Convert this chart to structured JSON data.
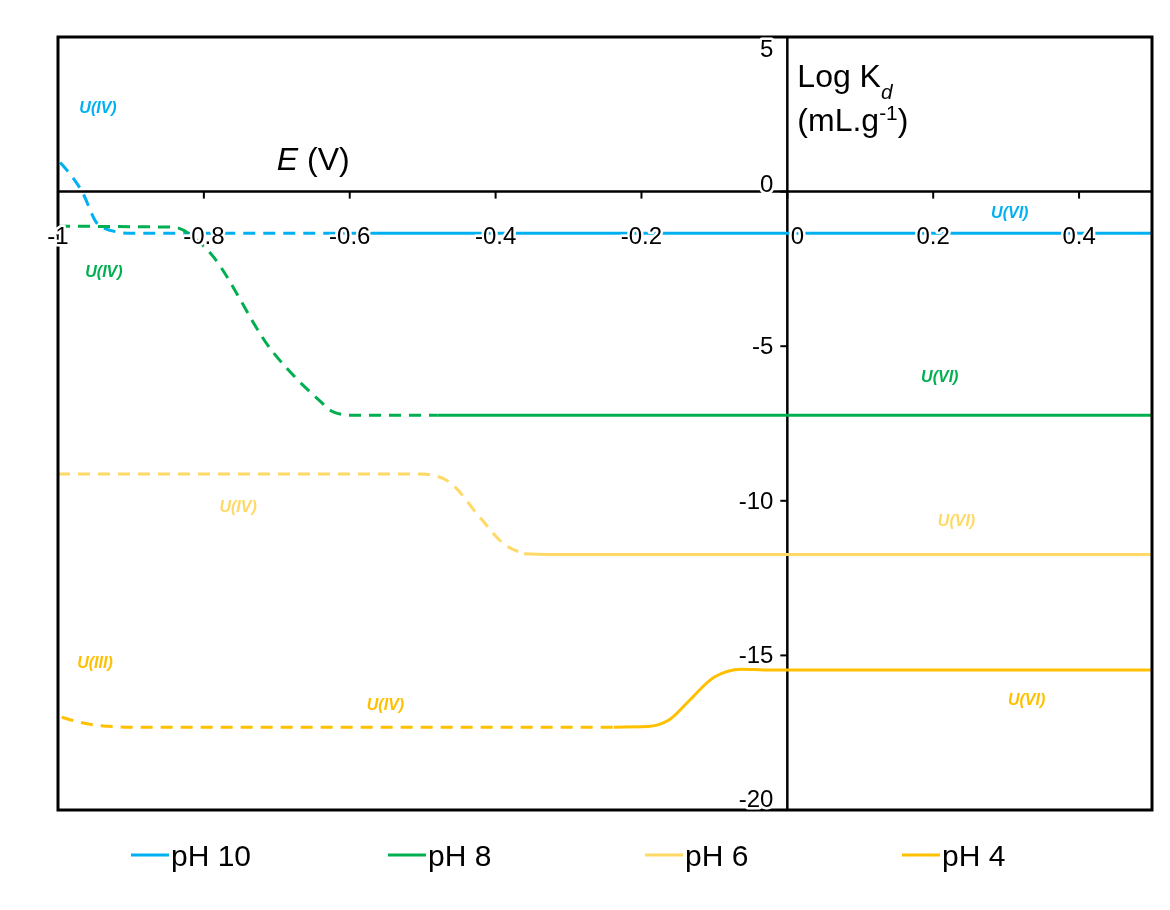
{
  "chart_data": {
    "type": "line",
    "xlabel": "E (V)",
    "ylabel": "Log K$_{d}$ (mL.g$^{-1}$)",
    "xlim": [
      -1,
      0.5
    ],
    "xticks": [
      -1,
      -0.8,
      -0.6,
      -0.4,
      -0.2,
      0,
      0.2,
      0.4
    ],
    "ylim": [
      -20,
      5
    ],
    "yticks": [
      -20,
      -15,
      -10,
      -5,
      0,
      5
    ],
    "grid": false,
    "legend": "bottom",
    "marker": "none",
    "series": [
      {
        "name": "pH 10",
        "color": "#00b0f0",
        "line_style": "solid",
        "x": [
          -0.6,
          0.5
        ],
        "values": [
          -1.35,
          -1.35
        ]
      },
      {
        "name": "pH 8",
        "color": "#00b050",
        "line_style": "solid",
        "x": [
          -0.48,
          0.5
        ],
        "values": [
          -7.23,
          -7.23
        ]
      },
      {
        "name": "pH 6",
        "color": "#ffd966",
        "line_style": "solid",
        "x": [
          -0.361,
          -0.3,
          0.5
        ],
        "values": [
          -11.71,
          -11.74,
          -11.74
        ]
      },
      {
        "name": "pH 4",
        "color": "#ffc000",
        "line_style": "solid",
        "x": [
          -0.238,
          -0.191,
          -0.163,
          -0.136,
          -0.1,
          -0.063,
          -0.03,
          0.5
        ],
        "values": [
          -17.32,
          -17.3,
          -17.1,
          -16.5,
          -15.7,
          -15.45,
          -15.47,
          -15.47
        ]
      },
      {
        "color": "#00b0f0",
        "line_style": "dashed",
        "x": [
          -0.997,
          -0.967,
          -0.945,
          -0.92,
          -0.9,
          -0.6
        ],
        "values": [
          0.94,
          0,
          -1.06,
          -1.3,
          -1.35,
          -1.35
        ]
      },
      {
        "color": "#00b050",
        "line_style": "dashed",
        "x": [
          -1,
          -0.842,
          -0.8,
          -0.705,
          -0.644,
          -0.622,
          -0.6,
          -0.48
        ],
        "values": [
          -1.12,
          -1.15,
          -1.77,
          -5.2,
          -6.7,
          -7.13,
          -7.23,
          -7.23
        ]
      },
      {
        "color": "#ffd966",
        "line_style": "dashed",
        "x": [
          -1,
          -0.503,
          -0.489,
          -0.466,
          -0.42,
          -0.389,
          -0.361
        ],
        "values": [
          -9.13,
          -9.13,
          -9.16,
          -9.35,
          -10.58,
          -11.39,
          -11.71
        ]
      },
      {
        "color": "#ffc000",
        "line_style": "dashed",
        "x": [
          -0.995,
          -0.947,
          -0.9,
          -0.238
        ],
        "values": [
          -17.0,
          -17.26,
          -17.32,
          -17.32
        ]
      }
    ],
    "annotations": [
      "U(IV)",
      {
        "text": "U(IV)",
        "x": -0.937,
        "y": -1.12
      },
      {
        "text": "U(VI)",
        "x": 0.305,
        "y": -1.35
      },
      {
        "text": "U(VI)",
        "x": 0.209,
        "y": -7.23
      },
      {
        "text": "U(IV)",
        "x": -0.753,
        "y": -9.13
      },
      {
        "text": "U(VI)",
        "x": 0.232,
        "y": -11.74
      },
      "U(III)",
      {
        "text": "U(IV)",
        "x": -0.551,
        "y": -17.32
      },
      {
        "text": "U(VI)",
        "x": 0.328,
        "y": -15.47
      }
    ]
  }
}
